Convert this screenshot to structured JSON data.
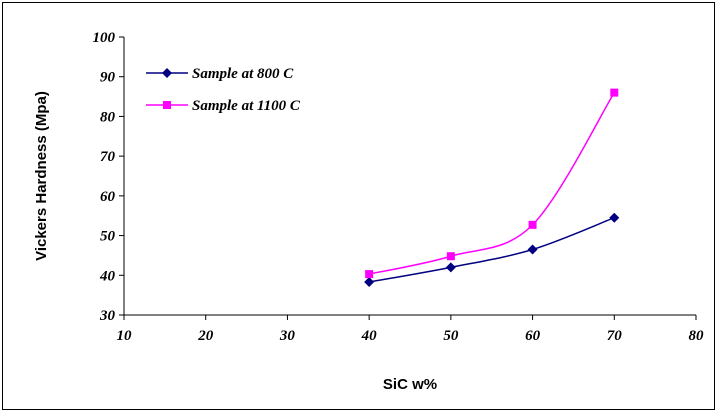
{
  "chart_data": {
    "type": "line",
    "xlabel": "SiC w%",
    "ylabel": "Vickers Hardness (Mpa)",
    "xlim": [
      10,
      80
    ],
    "ylim": [
      30,
      100
    ],
    "xticks": [
      10,
      20,
      30,
      40,
      50,
      60,
      70,
      80
    ],
    "yticks": [
      30,
      40,
      50,
      60,
      70,
      80,
      90,
      100
    ],
    "grid": false,
    "legend_position": "top-left",
    "series": [
      {
        "name": "Sample at 800 C",
        "color": "#000080",
        "marker": "diamond",
        "x": [
          40,
          50,
          60,
          70
        ],
        "y": [
          38.3,
          42,
          46.5,
          54.5
        ]
      },
      {
        "name": "Sample at 1100 C",
        "color": "#ff00ff",
        "marker": "square",
        "x": [
          40,
          50,
          60,
          70
        ],
        "y": [
          40.3,
          44.8,
          52.7,
          86
        ]
      }
    ]
  }
}
